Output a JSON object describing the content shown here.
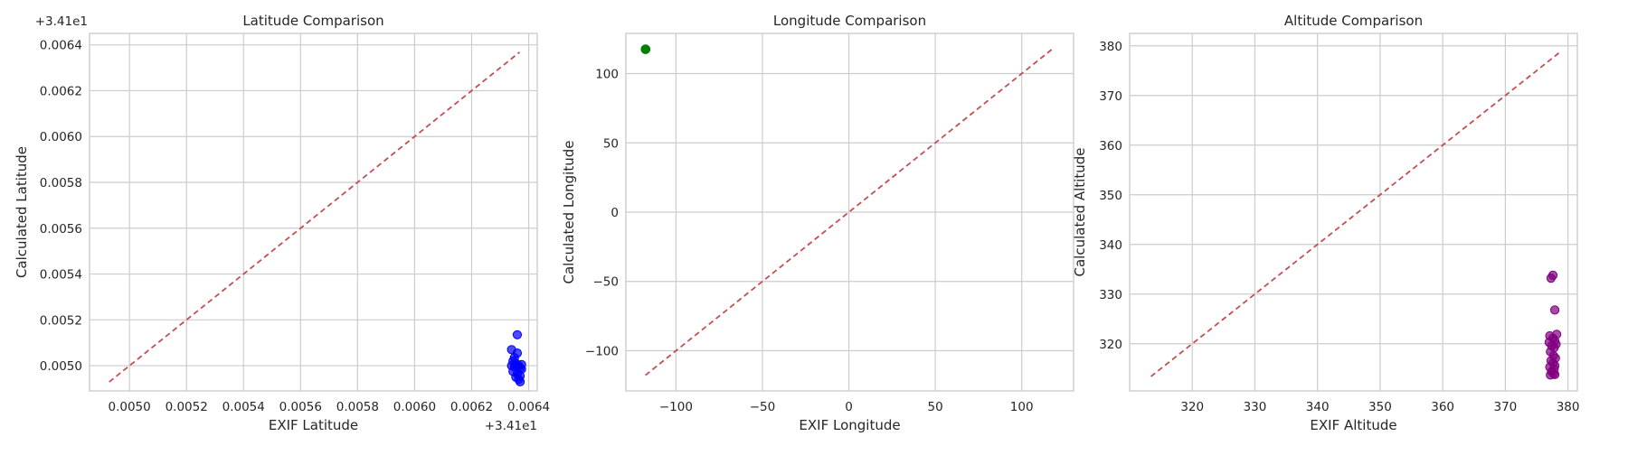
{
  "chart_data": [
    {
      "type": "scatter",
      "title": "Latitude Comparison",
      "xlabel": "EXIF Latitude",
      "ylabel": "Calculated Latitude",
      "offset_label_x": "+3.41e1",
      "offset_label_y": "+3.41e1",
      "xlim": [
        0.00486,
        0.00643
      ],
      "ylim": [
        0.00489,
        0.00645
      ],
      "xticks": [
        0.005,
        0.0052,
        0.0054,
        0.0056,
        0.0058,
        0.006,
        0.0062,
        0.0064
      ],
      "xtick_labels": [
        "0.0050",
        "0.0052",
        "0.0054",
        "0.0056",
        "0.0058",
        "0.0060",
        "0.0062",
        "0.0064"
      ],
      "yticks": [
        0.005,
        0.0052,
        0.0054,
        0.0056,
        0.0058,
        0.006,
        0.0062,
        0.0064
      ],
      "ytick_labels": [
        "0.0050",
        "0.0052",
        "0.0054",
        "0.0056",
        "0.0058",
        "0.0060",
        "0.0062",
        "0.0064"
      ],
      "grid": true,
      "point_color": "#0000ff",
      "reference_line": {
        "x": [
          0.004929,
          0.006368
        ],
        "y": [
          0.004929,
          0.006368
        ],
        "color": "#c44e52",
        "style": "dashed"
      },
      "points": [
        {
          "x": 0.00636,
          "y": 0.005135
        },
        {
          "x": 0.00634,
          "y": 0.00507
        },
        {
          "x": 0.00636,
          "y": 0.005055
        },
        {
          "x": 0.00635,
          "y": 0.005035
        },
        {
          "x": 0.006345,
          "y": 0.00502
        },
        {
          "x": 0.006355,
          "y": 0.00501
        },
        {
          "x": 0.006365,
          "y": 0.005
        },
        {
          "x": 0.006375,
          "y": 0.005005
        },
        {
          "x": 0.00635,
          "y": 0.004995
        },
        {
          "x": 0.00637,
          "y": 0.00499
        },
        {
          "x": 0.006345,
          "y": 0.004975
        },
        {
          "x": 0.00636,
          "y": 0.004965
        },
        {
          "x": 0.00637,
          "y": 0.004955
        },
        {
          "x": 0.006355,
          "y": 0.00495
        },
        {
          "x": 0.006365,
          "y": 0.00494
        },
        {
          "x": 0.00637,
          "y": 0.00493
        },
        {
          "x": 0.006375,
          "y": 0.004985
        },
        {
          "x": 0.00634,
          "y": 0.005
        }
      ]
    },
    {
      "type": "scatter",
      "title": "Longitude Comparison",
      "xlabel": "EXIF Longitude",
      "ylabel": "Calculated Longitude",
      "xlim": [
        -129,
        130
      ],
      "ylim": [
        -129,
        129
      ],
      "xticks": [
        -100,
        -50,
        0,
        50,
        100
      ],
      "xtick_labels": [
        "−100",
        "−50",
        "0",
        "50",
        "100"
      ],
      "yticks": [
        -100,
        -50,
        0,
        50,
        100
      ],
      "ytick_labels": [
        "−100",
        "−50",
        "0",
        "50",
        "100"
      ],
      "grid": true,
      "point_color": "#008000",
      "reference_line": {
        "x": [
          -117.7,
          117.6
        ],
        "y": [
          -117.7,
          117.6
        ],
        "color": "#c44e52",
        "style": "dashed"
      },
      "points": [
        {
          "x": -117.7,
          "y": 117.6
        },
        {
          "x": -117.6,
          "y": 117.7
        },
        {
          "x": -117.7,
          "y": 117.5
        },
        {
          "x": -117.5,
          "y": 117.6
        },
        {
          "x": -117.6,
          "y": 117.4
        }
      ]
    },
    {
      "type": "scatter",
      "title": "Altitude Comparison",
      "xlabel": "EXIF Altitude",
      "ylabel": "Calculated Altitude",
      "xlim": [
        310,
        381.5
      ],
      "ylim": [
        310.5,
        382.5
      ],
      "xticks": [
        320,
        330,
        340,
        350,
        360,
        370,
        380
      ],
      "xtick_labels": [
        "320",
        "330",
        "340",
        "350",
        "360",
        "370",
        "380"
      ],
      "yticks": [
        320,
        330,
        340,
        350,
        360,
        370,
        380
      ],
      "ytick_labels": [
        "320",
        "330",
        "340",
        "350",
        "360",
        "370",
        "380"
      ],
      "grid": true,
      "point_color": "#800080",
      "reference_line": {
        "x": [
          313.4,
          378.6
        ],
        "y": [
          313.4,
          378.6
        ],
        "color": "#c44e52",
        "style": "dashed"
      },
      "points": [
        {
          "x": 377.6,
          "y": 333.8
        },
        {
          "x": 377.3,
          "y": 333.2
        },
        {
          "x": 377.9,
          "y": 326.8
        },
        {
          "x": 378.2,
          "y": 321.9
        },
        {
          "x": 377.1,
          "y": 321.6
        },
        {
          "x": 377.6,
          "y": 321.1
        },
        {
          "x": 377.9,
          "y": 320.6
        },
        {
          "x": 377.0,
          "y": 320.3
        },
        {
          "x": 378.1,
          "y": 319.9
        },
        {
          "x": 377.4,
          "y": 319.6
        },
        {
          "x": 377.8,
          "y": 319.2
        },
        {
          "x": 377.2,
          "y": 318.4
        },
        {
          "x": 377.7,
          "y": 317.6
        },
        {
          "x": 378.0,
          "y": 317.1
        },
        {
          "x": 377.3,
          "y": 316.6
        },
        {
          "x": 377.6,
          "y": 316.1
        },
        {
          "x": 377.9,
          "y": 315.6
        },
        {
          "x": 377.1,
          "y": 315.3
        },
        {
          "x": 377.8,
          "y": 314.9
        },
        {
          "x": 377.4,
          "y": 314.4
        },
        {
          "x": 377.7,
          "y": 314.0
        },
        {
          "x": 377.2,
          "y": 313.7
        },
        {
          "x": 377.9,
          "y": 313.8
        }
      ]
    }
  ]
}
